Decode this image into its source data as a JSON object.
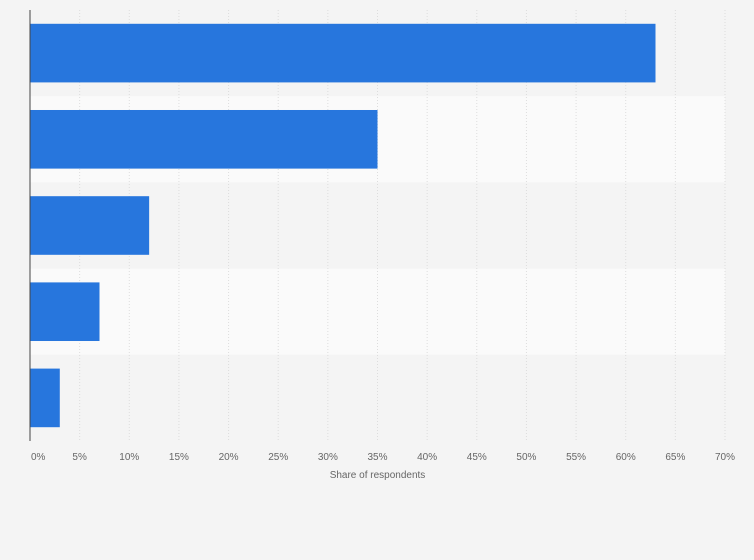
{
  "chart_data": {
    "type": "bar",
    "orientation": "horizontal",
    "categories": [
      "",
      "",
      "",
      "",
      ""
    ],
    "values": [
      63,
      35,
      12,
      7,
      3
    ],
    "title": "",
    "xlabel": "Share of respondents",
    "ylabel": "",
    "xlim": [
      0,
      70
    ],
    "x_ticks": [
      "0%",
      "5%",
      "10%",
      "15%",
      "20%",
      "25%",
      "30%",
      "35%",
      "40%",
      "45%",
      "50%",
      "55%",
      "60%",
      "65%",
      "70%"
    ],
    "grid": true,
    "legend": "none",
    "colors": {
      "bar": "#2776dd",
      "band_dark": "#f4f4f4",
      "band_light": "#fafafa",
      "grid": "#dddddd",
      "axis": "#444444",
      "text": "#666666"
    }
  }
}
